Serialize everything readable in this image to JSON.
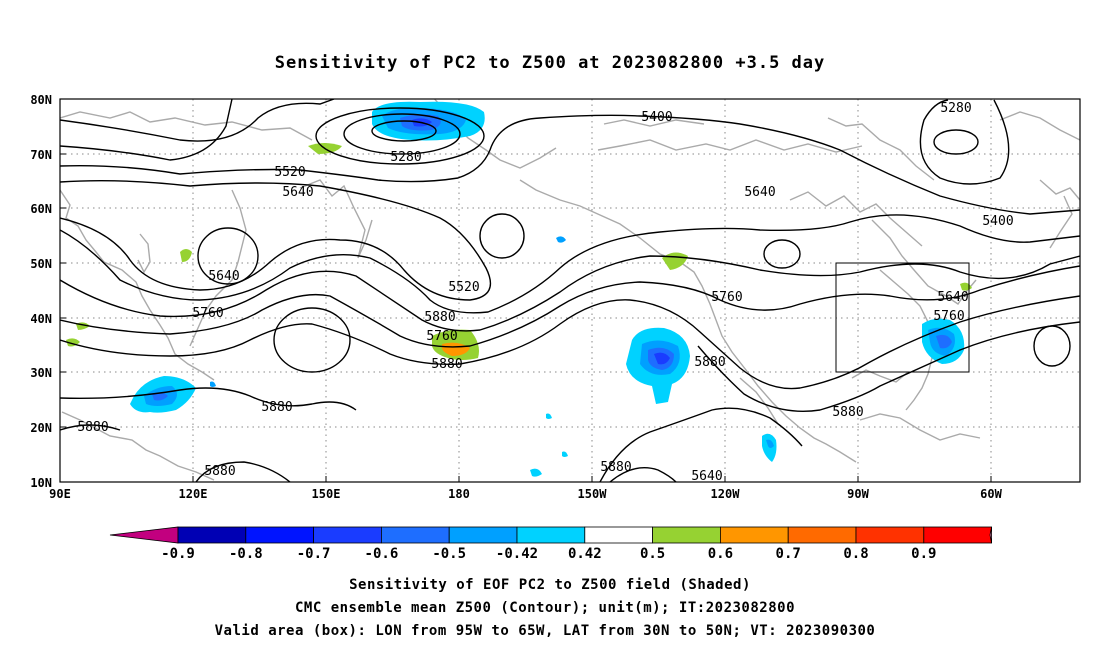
{
  "title": "Sensitivity of PC2 to Z500 at 2023082800 +3.5 day",
  "map": {
    "lon_labels": [
      "90E",
      "120E",
      "150E",
      "180",
      "150W",
      "120W",
      "90W",
      "60W"
    ],
    "lat_labels": [
      "80N",
      "70N",
      "60N",
      "50N",
      "40N",
      "30N",
      "20N",
      "10N"
    ],
    "contour_labels": [
      {
        "text": "5400"
      },
      {
        "text": "5280"
      },
      {
        "text": "5280"
      },
      {
        "text": "5520"
      },
      {
        "text": "5640"
      },
      {
        "text": "5640"
      },
      {
        "text": "5400"
      },
      {
        "text": "5640"
      },
      {
        "text": "5520"
      },
      {
        "text": "5760"
      },
      {
        "text": "5640"
      },
      {
        "text": "5760"
      },
      {
        "text": "5880"
      },
      {
        "text": "5760"
      },
      {
        "text": "5640"
      },
      {
        "text": "5760"
      },
      {
        "text": "5880"
      },
      {
        "text": "5880"
      },
      {
        "text": "5880"
      },
      {
        "text": "5880"
      },
      {
        "text": "5880"
      },
      {
        "text": "5880"
      },
      {
        "text": "5880"
      }
    ],
    "valid_box": {
      "lon_min": -95,
      "lon_max": -65,
      "lat_min": 30,
      "lat_max": 50
    },
    "colors": {
      "coast": "#aaaaaa",
      "contour": "#000000",
      "grid": "#888888"
    }
  },
  "colorbar": {
    "labels": [
      "-0.9",
      "-0.8",
      "-0.7",
      "-0.6",
      "-0.5",
      "-0.42",
      "0.42",
      "0.5",
      "0.6",
      "0.7",
      "0.8",
      "0.9"
    ],
    "colors": [
      "#c2007f",
      "#0000b4",
      "#0014ff",
      "#1a3cff",
      "#1e6eff",
      "#00a0ff",
      "#00d2ff",
      "#ffffff",
      "#96d232",
      "#ff9600",
      "#ff6a00",
      "#ff3200",
      "#ff0000",
      "#ff96c8"
    ]
  },
  "footer": {
    "line1": "Sensitivity of EOF PC2 to Z500 field (Shaded)",
    "line2": "CMC ensemble mean Z500 (Contour); unit(m); IT:2023082800",
    "line3": "Valid area (box): LON from 95W to 65W, LAT from 30N to 50N; VT: 2023090300"
  }
}
